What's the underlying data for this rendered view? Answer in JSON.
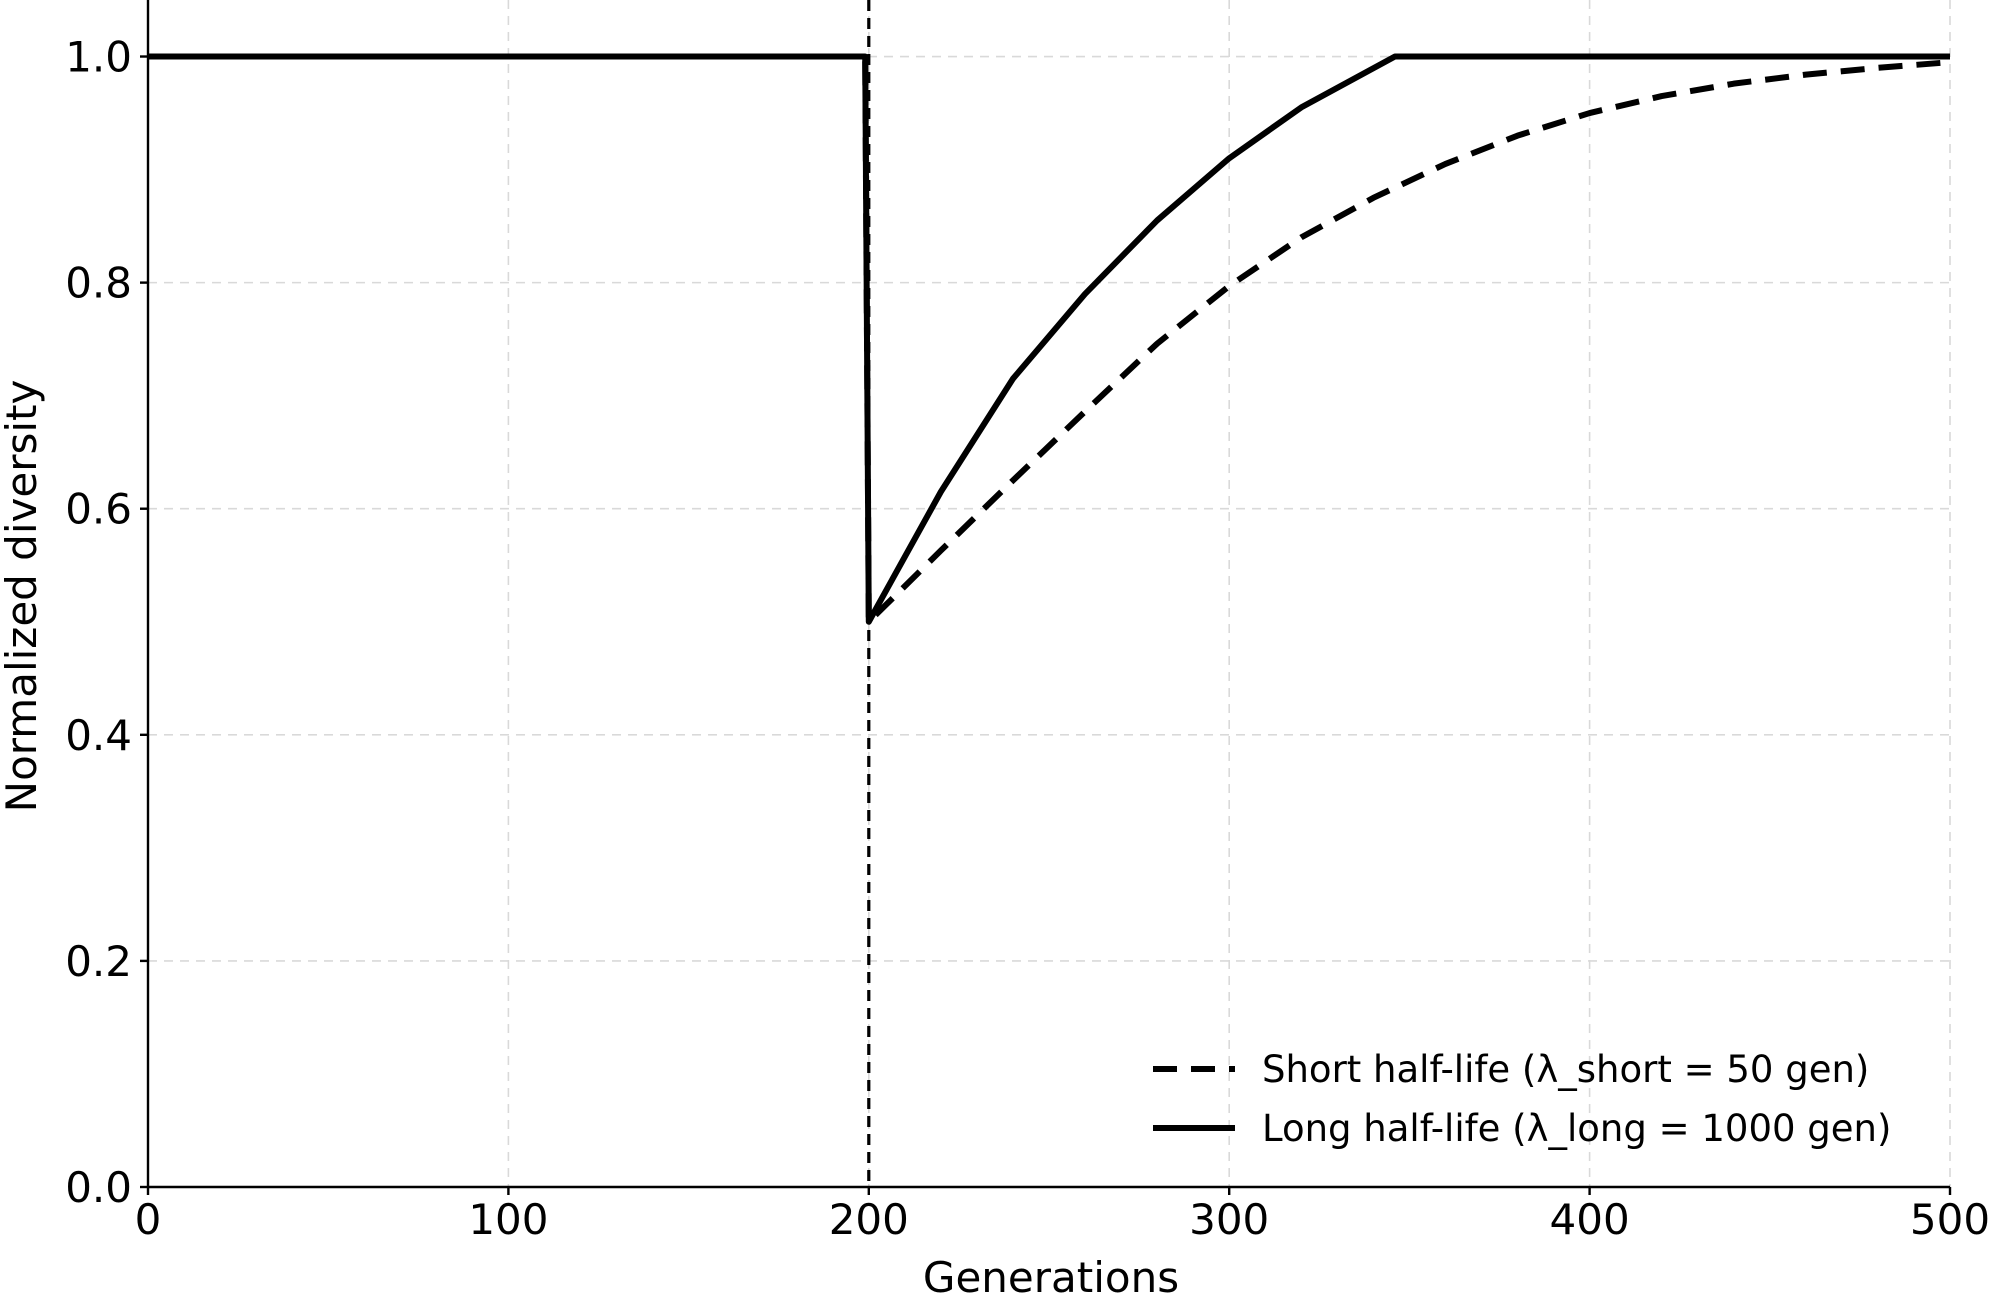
{
  "chart_data": {
    "type": "line",
    "xlabel": "Generations",
    "ylabel": "Normalized diversity",
    "xlim": [
      0,
      500
    ],
    "ylim": [
      0,
      1.05
    ],
    "xticks": [
      0,
      100,
      200,
      300,
      400,
      500
    ],
    "yticks": [
      0.0,
      0.2,
      0.4,
      0.6,
      0.8,
      1.0
    ],
    "xtick_labels": [
      "0",
      "100",
      "200",
      "300",
      "400",
      "500"
    ],
    "ytick_labels": [
      "0.0",
      "0.2",
      "0.4",
      "0.6",
      "0.8",
      "1.0"
    ],
    "grid": true,
    "legend_position": "bottom-right",
    "vertical_marker": {
      "x": 200,
      "style": "dashed",
      "color": "#000000"
    },
    "series": [
      {
        "name": "Short half-life (λ_short = 50 gen)",
        "style": "dashed",
        "color": "#000000",
        "x": [
          0,
          199,
          200,
          220,
          240,
          260,
          280,
          300,
          320,
          340,
          360,
          380,
          400,
          420,
          440,
          460,
          480,
          500
        ],
        "y": [
          1.0,
          1.0,
          0.5,
          0.563,
          0.625,
          0.686,
          0.746,
          0.797,
          0.84,
          0.875,
          0.905,
          0.93,
          0.95,
          0.965,
          0.976,
          0.984,
          0.99,
          0.995
        ]
      },
      {
        "name": "Long half-life (λ_long = 1000 gen)",
        "style": "solid",
        "color": "#000000",
        "x": [
          0,
          199,
          200,
          220,
          240,
          260,
          280,
          300,
          320,
          346,
          400,
          450,
          500
        ],
        "y": [
          1.0,
          1.0,
          0.5,
          0.615,
          0.715,
          0.79,
          0.855,
          0.91,
          0.955,
          1.0,
          1.0,
          1.0,
          1.0
        ]
      }
    ]
  }
}
